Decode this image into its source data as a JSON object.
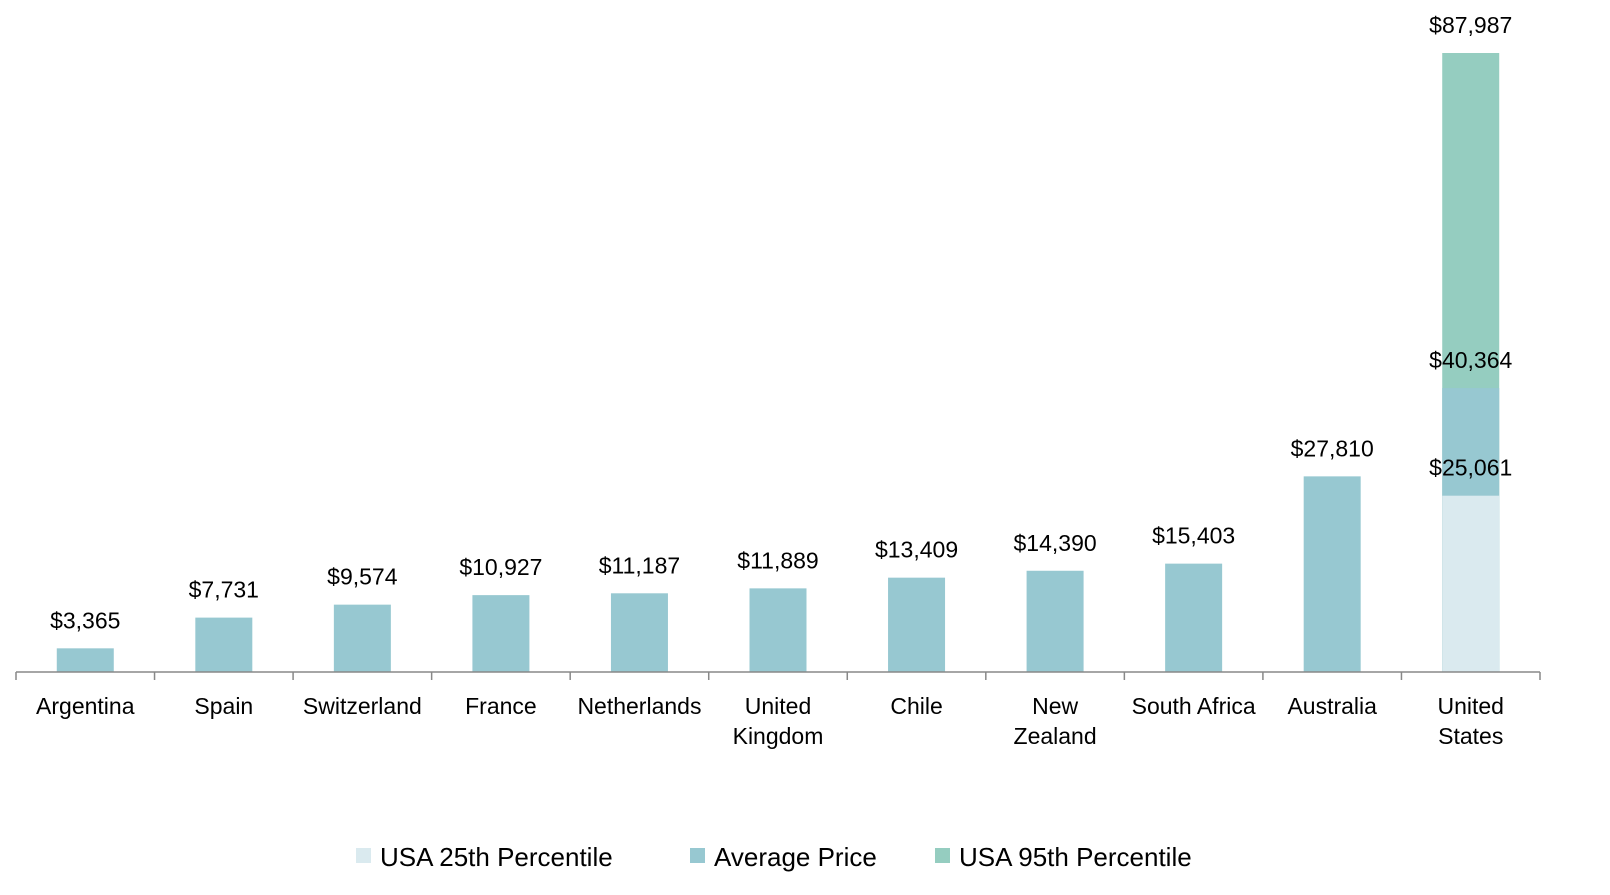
{
  "chart_data": {
    "type": "bar",
    "categories": [
      "Argentina",
      "Spain",
      "Switzerland",
      "France",
      "Netherlands",
      "United\nKingdom",
      "Chile",
      "New\nZealand",
      "South Africa",
      "Australia",
      "United\nStates"
    ],
    "series": [
      {
        "name": "USA 95th Percentile",
        "color": "#95cdc0",
        "values": [
          null,
          null,
          null,
          null,
          null,
          null,
          null,
          null,
          null,
          null,
          87987
        ],
        "value_labels": [
          null,
          null,
          null,
          null,
          null,
          null,
          null,
          null,
          null,
          null,
          "$87,987"
        ]
      },
      {
        "name": "Average Price",
        "color": "#97c8d1",
        "values": [
          3365,
          7731,
          9574,
          10927,
          11187,
          11889,
          13409,
          14390,
          15403,
          27810,
          40364
        ],
        "value_labels": [
          "$3,365",
          "$7,731",
          "$9,574",
          "$10,927",
          "$11,187",
          "$11,889",
          "$13,409",
          "$14,390",
          "$15,403",
          "$27,810",
          "$40,364"
        ]
      },
      {
        "name": "USA 25th Percentile",
        "color": "#daeaef",
        "values": [
          null,
          null,
          null,
          null,
          null,
          null,
          null,
          null,
          null,
          null,
          25061
        ],
        "value_labels": [
          null,
          null,
          null,
          null,
          null,
          null,
          null,
          null,
          null,
          null,
          "$25,061"
        ]
      }
    ],
    "legend_order": [
      2,
      1,
      0
    ]
  }
}
